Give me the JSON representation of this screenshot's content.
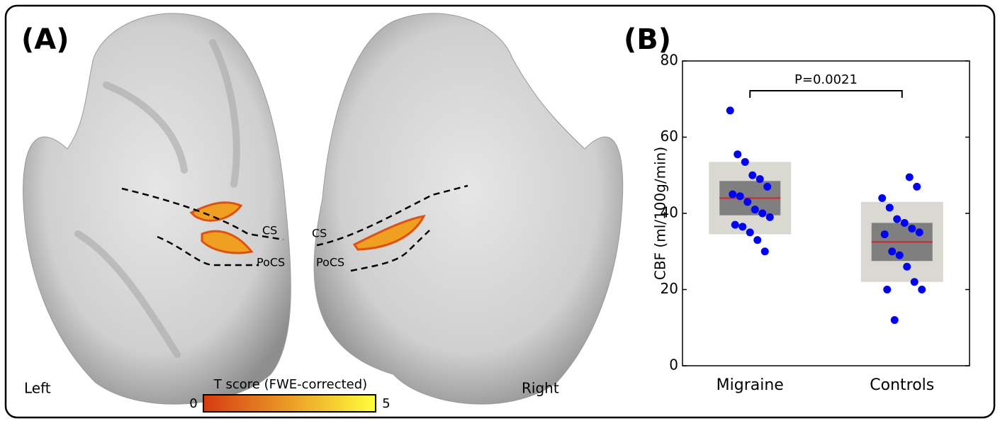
{
  "panel_a": {
    "label": "(A)",
    "left_label": "Left",
    "right_label": "Right",
    "left_sulci": [
      "CS",
      "PoCS"
    ],
    "right_sulci": [
      "CS",
      "PoCS"
    ],
    "colorbar": {
      "title": "T score (FWE-corrected)",
      "range": [
        0,
        5
      ],
      "colors": [
        "#d63a10",
        "#ffff3c"
      ]
    }
  },
  "chart_data": {
    "type": "strip-box",
    "panel_label": "(B)",
    "y_label": "CBF (ml/100g/min)",
    "annotation": "P=0.0021",
    "ylim": [
      0,
      80
    ],
    "yticks": [
      0,
      20,
      40,
      60,
      80
    ],
    "point_color": "#0000ff",
    "mean_color": "#e02020",
    "inner_color": "#7f7f7f",
    "outer_color": "#d9d9d2",
    "groups": [
      {
        "name": "Migraine",
        "values": [
          67,
          55.5,
          53.5,
          50,
          49,
          47,
          45,
          44.5,
          43,
          41,
          40,
          39,
          37,
          36.5,
          35,
          33,
          30
        ],
        "mean": 44,
        "inner": [
          39.5,
          48.5
        ],
        "outer": [
          34.5,
          53.5
        ]
      },
      {
        "name": "Controls",
        "values": [
          49.5,
          47,
          44,
          41.5,
          38.5,
          37.5,
          36,
          35,
          34.5,
          30,
          29,
          26,
          22,
          20,
          20,
          12
        ],
        "mean": 32.5,
        "inner": [
          27.5,
          37.5
        ],
        "outer": [
          22,
          43
        ]
      }
    ]
  }
}
